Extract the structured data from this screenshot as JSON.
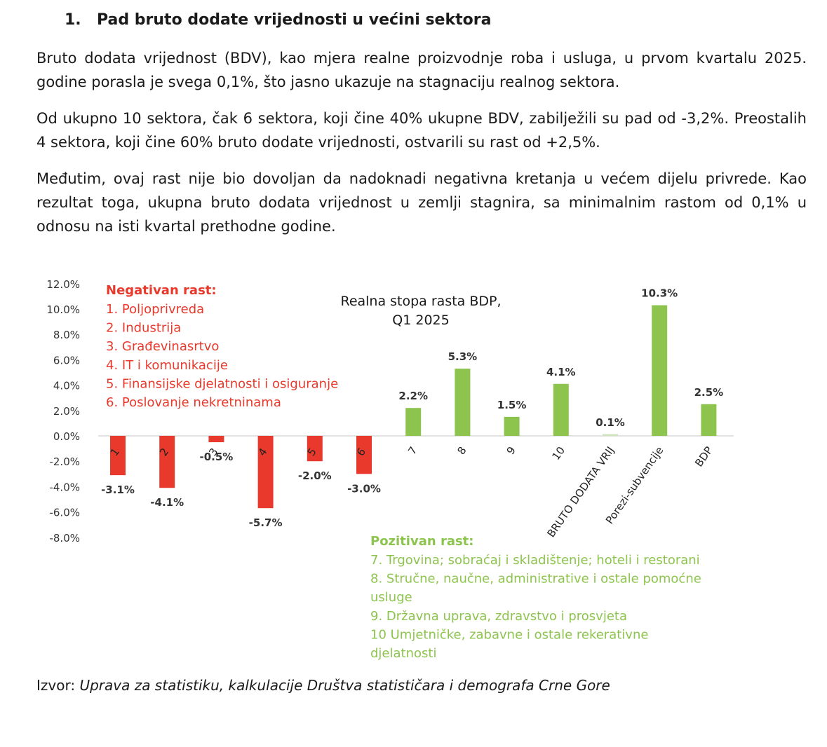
{
  "heading": {
    "number": "1.",
    "title": "Pad bruto dodate vrijednosti u većini sektora"
  },
  "paragraphs": [
    "Bruto dodata vrijednost (BDV), kao mjera realne proizvodnje roba i usluga, u prvom kvartalu 2025. godine porasla je svega 0,1%, što jasno ukazuje na stagnaciju realnog sektora.",
    "Od ukupno 10 sektora, čak 6 sektora, koji čine 40% ukupne BDV, zabilježili su pad od -3,2%. Preostalih 4 sektora, koji čine 60% bruto dodate vrijednosti, ostvarili su rast od +2,5%.",
    "Međutim, ovaj rast nije bio dovoljan da nadoknadi negativna kretanja u većem dijelu privrede. Kao rezultat toga, ukupna bruto dodata vrijednost u zemlji stagnira, sa minimalnim rastom od 0,1% u odnosu na isti kvartal prethodne godine."
  ],
  "chart_data": {
    "type": "bar",
    "title_lines": [
      "Realna stopa rasta BDP,",
      "Q1 2025"
    ],
    "categories": [
      "1",
      "2",
      "3",
      "4",
      "5",
      "6",
      "7",
      "8",
      "9",
      "10",
      "BRUTO DODATA VRIJ",
      "Porezi-subvencije",
      "BDP"
    ],
    "values": [
      -3.1,
      -4.1,
      -0.5,
      -5.7,
      -2.0,
      -3.0,
      2.2,
      5.3,
      1.5,
      4.1,
      0.1,
      10.3,
      2.5
    ],
    "value_labels": [
      "-3.1%",
      "-4.1%",
      "-0.5%",
      "-5.7%",
      "-2.0%",
      "-3.0%",
      "2.2%",
      "5.3%",
      "1.5%",
      "4.1%",
      "0.1%",
      "10.3%",
      "2.5%"
    ],
    "y_ticks": [
      "12.0%",
      "10.0%",
      "8.0%",
      "6.0%",
      "4.0%",
      "2.0%",
      "0.0%",
      "-2.0%",
      "-4.0%",
      "-6.0%",
      "-8.0%"
    ],
    "ylim": [
      -8,
      12
    ],
    "grid": false,
    "colors": {
      "negative": "#e8392c",
      "positive": "#8dc44e",
      "neutral": "#cfe3bd"
    },
    "legend_negative": {
      "title": "Negativan rast:",
      "items": [
        "1. Poljoprivreda",
        "2. Industrija",
        "3. Građevinasrtvo",
        "4. IT i komunikacije",
        "5. Finansijske djelatnosti i osiguranje",
        "6. Poslovanje nekretninama"
      ]
    },
    "legend_positive": {
      "title": "Pozitivan rast:",
      "lines": [
        "7. Trgovina; sobraćaj i skladištenje; hoteli i restorani",
        "8. Stručne, naučne, administrative i ostale pomoćne",
        "usluge",
        "9. Državna uprava, zdravstvo i prosvjeta",
        "10 Umjetničke, zabavne i ostale rekerativne",
        "djelatnosti"
      ]
    }
  },
  "source": {
    "label": "Izvor:",
    "text": "Uprava za statistiku, kalkulacije Društva statističara i demografa Crne Gore"
  }
}
